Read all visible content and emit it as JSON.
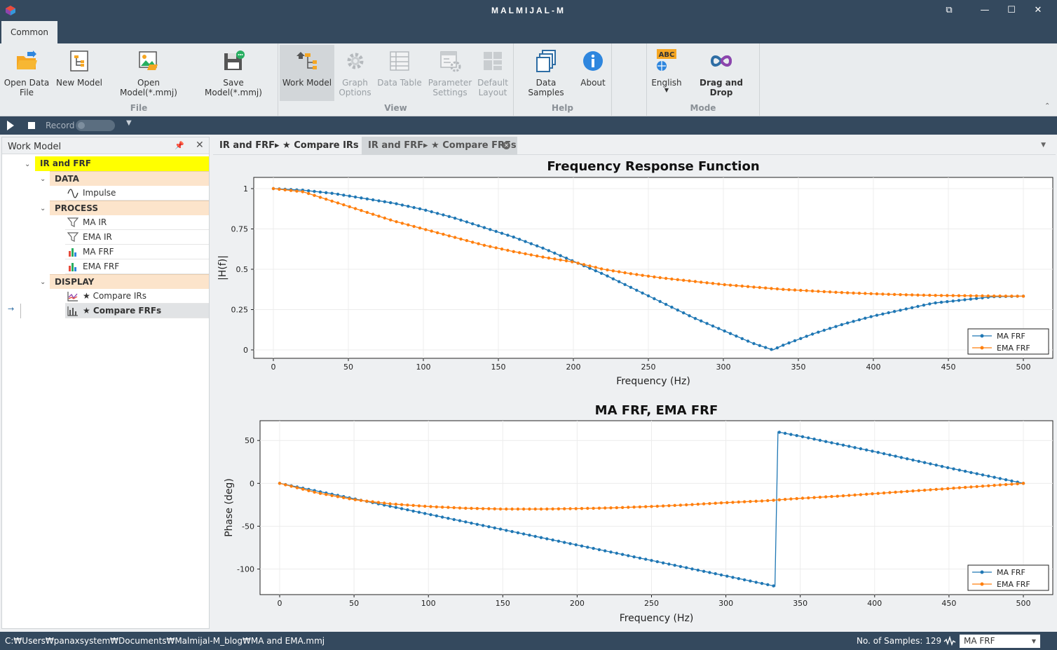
{
  "window": {
    "title": "MALMIJAL-M",
    "buttons": {
      "restore": "⧉",
      "minimize": "—",
      "maximize": "☐",
      "close": "✕"
    }
  },
  "ribbon": {
    "tab": "Common",
    "groups": {
      "file": {
        "label": "File",
        "buttons": [
          {
            "label_line1": "Open Data",
            "label_line2": "File",
            "icon": "open-folder-icon"
          },
          {
            "label_line1": "New Model",
            "label_line2": "",
            "icon": "new-model-icon"
          },
          {
            "label_line1": "Open Model(*.mmj)",
            "label_line2": "",
            "icon": "open-model-icon"
          },
          {
            "label_line1": "Save Model(*.mmj)",
            "label_line2": "",
            "icon": "save-model-icon"
          }
        ]
      },
      "view": {
        "label": "View",
        "buttons": [
          {
            "label_line1": "Work Model",
            "label_line2": "",
            "icon": "work-model-icon",
            "state": "active"
          },
          {
            "label_line1": "Graph",
            "label_line2": "Options",
            "icon": "gear-icon",
            "state": "disabled"
          },
          {
            "label_line1": "Data Table",
            "label_line2": "",
            "icon": "table-icon",
            "state": "disabled"
          },
          {
            "label_line1": "Parameter",
            "label_line2": "Settings",
            "icon": "parameter-settings-icon",
            "state": "disabled"
          },
          {
            "label_line1": "Default",
            "label_line2": "Layout",
            "icon": "layout-icon",
            "state": "disabled"
          }
        ]
      },
      "help": {
        "label": "Help",
        "buttons": [
          {
            "label_line1": "Data Samples",
            "label_line2": "",
            "icon": "data-samples-icon"
          },
          {
            "label_line1": "About",
            "label_line2": "",
            "icon": "info-icon"
          }
        ]
      },
      "mode": {
        "label": "Mode",
        "buttons": [
          {
            "label_line1": "English",
            "label_line2": "",
            "icon": "language-icon",
            "badge": "ABC"
          },
          {
            "label_line1": "Drag and Drop",
            "label_line2": "",
            "icon": "infinity-icon"
          }
        ]
      }
    }
  },
  "recordbar": {
    "record_label": "Record"
  },
  "workmodel": {
    "title": "Work Model",
    "root": "IR and FRF",
    "categories": [
      {
        "label": "DATA",
        "items": [
          {
            "label": "Impulse",
            "icon": "wave-icon"
          }
        ]
      },
      {
        "label": "PROCESS",
        "items": [
          {
            "label": "MA IR",
            "icon": "filter-icon"
          },
          {
            "label": "EMA IR",
            "icon": "filter-icon"
          },
          {
            "label": "MA FRF",
            "icon": "bar-chart-icon"
          },
          {
            "label": "EMA FRF",
            "icon": "bar-chart-icon"
          }
        ]
      },
      {
        "label": "DISPLAY",
        "items": [
          {
            "label": "★ Compare IRs",
            "icon": "line-chart-icon"
          },
          {
            "label": "★ Compare FRFs",
            "icon": "bar-chart-icon",
            "current": true
          }
        ]
      }
    ]
  },
  "tabs": [
    {
      "label": "IR and FRF▸ ★ Compare IRs"
    },
    {
      "label": "IR and FRF▸ ★ Compare FRFs",
      "active": true
    }
  ],
  "colors": {
    "ma": "#1f77b4",
    "ema": "#ff7f0e",
    "titlebar": "#34495e"
  },
  "chart_data": [
    {
      "type": "line",
      "title": "Frequency Response Function",
      "xlabel": "Frequency (Hz)",
      "ylabel": "|H(f)|",
      "xlim": [
        0,
        500
      ],
      "ylim": [
        0,
        1
      ],
      "xticks": [
        0,
        50,
        100,
        150,
        200,
        250,
        300,
        350,
        400,
        450,
        500
      ],
      "yticks": [
        0,
        0.25,
        0.5,
        0.75,
        1
      ],
      "ytick_labels": [
        "0",
        "0.25",
        "0.5",
        "0.75",
        "1"
      ],
      "legend_position": "bottom-right",
      "grid": true,
      "series": [
        {
          "name": "MA FRF",
          "color": "#1f77b4",
          "x": [
            0,
            20,
            40,
            60,
            80,
            100,
            120,
            140,
            160,
            180,
            200,
            220,
            240,
            260,
            280,
            300,
            320,
            333,
            340,
            360,
            380,
            400,
            420,
            440,
            460,
            480,
            500
          ],
          "y": [
            1,
            0.99,
            0.97,
            0.94,
            0.91,
            0.87,
            0.82,
            0.76,
            0.7,
            0.63,
            0.55,
            0.47,
            0.38,
            0.29,
            0.2,
            0.12,
            0.04,
            0,
            0.03,
            0.1,
            0.16,
            0.21,
            0.25,
            0.29,
            0.31,
            0.33,
            0.333
          ]
        },
        {
          "name": "EMA FRF",
          "color": "#ff7f0e",
          "x": [
            0,
            20,
            40,
            60,
            80,
            100,
            120,
            140,
            160,
            180,
            200,
            220,
            240,
            260,
            280,
            300,
            320,
            340,
            360,
            380,
            400,
            420,
            440,
            460,
            480,
            500
          ],
          "y": [
            1,
            0.98,
            0.92,
            0.86,
            0.8,
            0.75,
            0.7,
            0.65,
            0.61,
            0.575,
            0.545,
            0.5,
            0.47,
            0.445,
            0.425,
            0.405,
            0.39,
            0.375,
            0.365,
            0.355,
            0.348,
            0.342,
            0.338,
            0.336,
            0.334,
            0.333
          ]
        }
      ]
    },
    {
      "type": "line",
      "title": "MA FRF, EMA FRF",
      "xlabel": "Frequency (Hz)",
      "ylabel": "Phase (deg)",
      "xlim": [
        0,
        500
      ],
      "ylim": [
        -120,
        60
      ],
      "xticks": [
        0,
        50,
        100,
        150,
        200,
        250,
        300,
        350,
        400,
        450,
        500
      ],
      "yticks": [
        -100,
        -50,
        0,
        50
      ],
      "ytick_labels": [
        "-100",
        "-50",
        "0",
        "50"
      ],
      "legend_position": "bottom-right",
      "grid": true,
      "series": [
        {
          "name": "MA FRF",
          "color": "#1f77b4",
          "x": [
            0,
            50,
            100,
            150,
            200,
            250,
            300,
            333,
            335,
            350,
            400,
            450,
            500
          ],
          "y": [
            0,
            -18,
            -36,
            -54,
            -72,
            -90,
            -108,
            -120,
            60,
            55,
            37,
            18,
            0
          ]
        },
        {
          "name": "EMA FRF",
          "color": "#ff7f0e",
          "x": [
            0,
            25,
            50,
            75,
            100,
            125,
            150,
            175,
            200,
            225,
            250,
            275,
            300,
            325,
            350,
            375,
            400,
            425,
            450,
            475,
            500
          ],
          "y": [
            0,
            -11,
            -19,
            -24,
            -27,
            -29,
            -30,
            -30,
            -29.5,
            -28.5,
            -27,
            -25,
            -22.5,
            -20.5,
            -17.5,
            -15,
            -12,
            -9,
            -6,
            -3,
            0
          ]
        }
      ]
    }
  ],
  "statusbar": {
    "path": "C:₩Users₩panaxsystem₩Documents₩Malmijal-M_blog₩MA and EMA.mmj",
    "samples": "No. of Samples: 129",
    "selected": "MA FRF"
  }
}
